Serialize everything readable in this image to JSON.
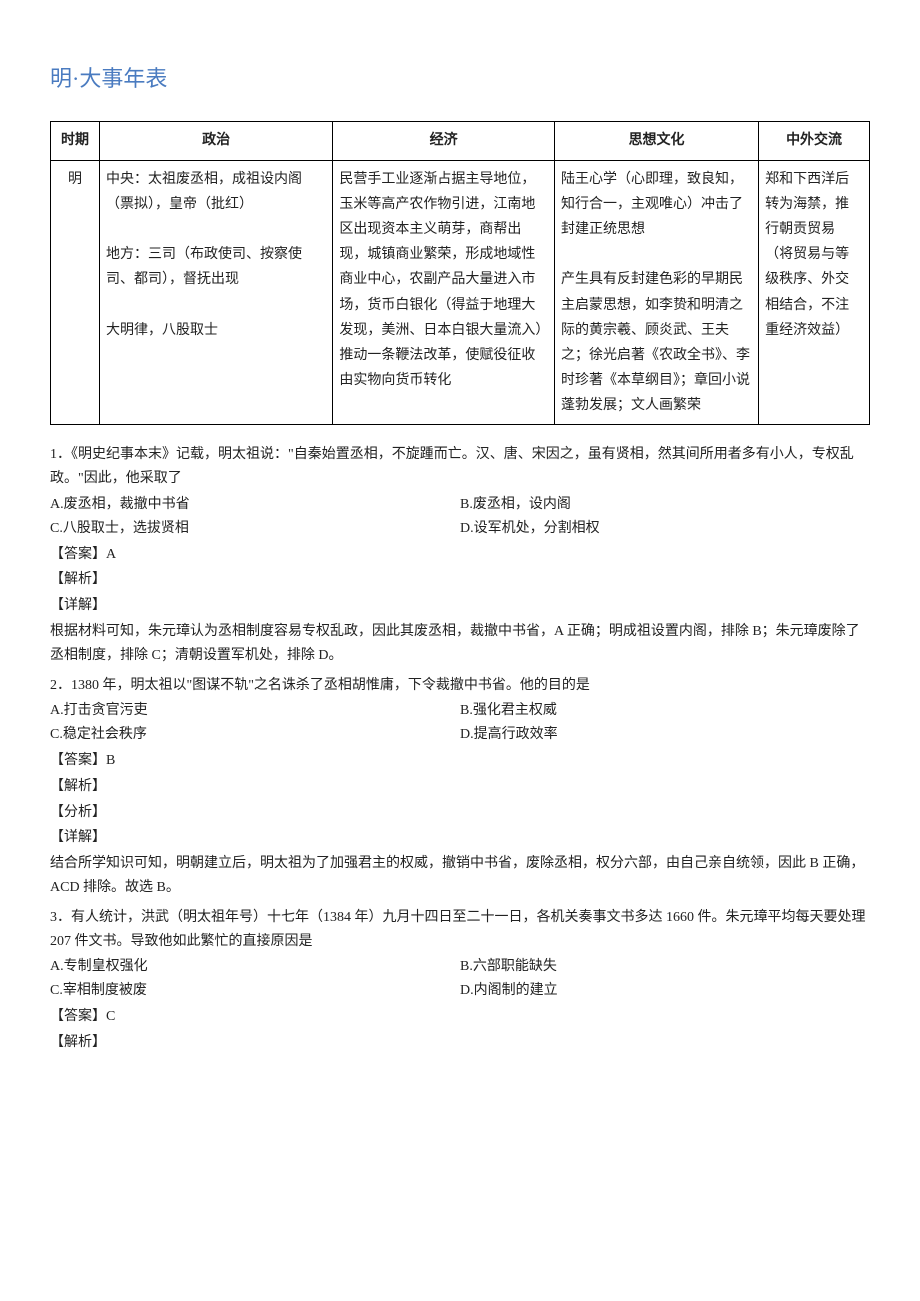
{
  "title": "明·大事年表",
  "table": {
    "headers": [
      "时期",
      "政治",
      "经济",
      "思想文化",
      "中外交流"
    ],
    "row": {
      "period": "明",
      "politics": "中央：太祖废丞相，成祖设内阁（票拟），皇帝（批红）\n\n地方：三司（布政使司、按察使司、都司），督抚出现\n\n大明律，八股取士",
      "economy": "民营手工业逐渐占据主导地位，玉米等高产农作物引进，江南地区出现资本主义萌芽，商帮出现，城镇商业繁荣，形成地域性商业中心，农副产品大量进入市场，货币白银化（得益于地理大发现，美洲、日本白银大量流入）推动一条鞭法改革，使赋役征收由实物向货币转化",
      "culture": "陆王心学（心即理，致良知，知行合一，主观唯心）冲击了封建正统思想\n\n产生具有反封建色彩的早期民主启蒙思想，如李贽和明清之际的黄宗羲、顾炎武、王夫之；徐光启著《农政全书》、李时珍著《本草纲目》；章回小说蓬勃发展；文人画繁荣",
      "exchange": "郑和下西洋后转为海禁，推行朝贡贸易（将贸易与等级秩序、外交相结合，不注重经济效益）"
    }
  },
  "questions": [
    {
      "num": "1",
      "stem": "．《明史纪事本末》记载，明太祖说：\"自秦始置丞相，不旋踵而亡。汉、唐、宋因之，虽有贤相，然其间所用者多有小人，专权乱政。\"因此，他采取了",
      "options": {
        "A": "A.废丞相，裁撤中书省",
        "B": "B.废丞相，设内阁",
        "C": "C.八股取士，选拔贤相",
        "D": "D.设军机处，分割相权"
      },
      "answer_label": "【答案】A",
      "jiexi_label": "【解析】",
      "xiangjie_label": "【详解】",
      "explain": "根据材料可知，朱元璋认为丞相制度容易专权乱政，因此其废丞相，裁撤中书省，A 正确；明成祖设置内阁，排除 B；朱元璋废除了丞相制度，排除 C；清朝设置军机处，排除 D。"
    },
    {
      "num": "2",
      "stem": "．1380 年，明太祖以\"图谋不轨\"之名诛杀了丞相胡惟庸，下令裁撤中书省。他的目的是",
      "options": {
        "A": "A.打击贪官污吏",
        "B": "B.强化君主权威",
        "C": "C.稳定社会秩序",
        "D": "D.提高行政效率"
      },
      "answer_label": "【答案】B",
      "jiexi_label": "【解析】",
      "fenxi_label": "【分析】",
      "xiangjie_label": "【详解】",
      "explain": "结合所学知识可知，明朝建立后，明太祖为了加强君主的权威，撤销中书省，废除丞相，权分六部，由自己亲自统领，因此 B 正确，ACD 排除。故选 B。"
    },
    {
      "num": "3",
      "stem": "．有人统计，洪武（明太祖年号）十七年（1384 年）九月十四日至二十一日，各机关奏事文书多达 1660 件。朱元璋平均每天要处理 207 件文书。导致他如此繁忙的直接原因是",
      "options": {
        "A": "A.专制皇权强化",
        "B": "B.六部职能缺失",
        "C": "C.宰相制度被废",
        "D": "D.内阁制的建立"
      },
      "answer_label": "【答案】C",
      "jiexi_label": "【解析】"
    }
  ]
}
